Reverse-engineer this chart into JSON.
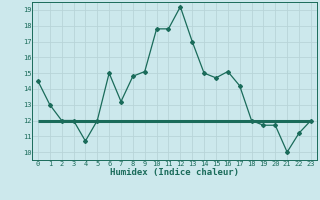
{
  "x": [
    0,
    1,
    2,
    3,
    4,
    5,
    6,
    7,
    8,
    9,
    10,
    11,
    12,
    13,
    14,
    15,
    16,
    17,
    18,
    19,
    20,
    21,
    22,
    23
  ],
  "y_curve": [
    14.5,
    13.0,
    12.0,
    12.0,
    10.7,
    12.0,
    15.0,
    13.2,
    14.8,
    15.1,
    17.8,
    17.8,
    19.2,
    17.0,
    15.0,
    14.7,
    15.1,
    14.2,
    12.0,
    11.7,
    11.7,
    10.0,
    11.2,
    12.0
  ],
  "y_flat": [
    12.0,
    12.0,
    12.0,
    12.0,
    12.0,
    12.0,
    12.0,
    12.0,
    12.0,
    12.0,
    12.0,
    12.0,
    12.0,
    12.0,
    12.0,
    12.0,
    12.0,
    12.0,
    12.0,
    12.0,
    12.0,
    12.0,
    12.0,
    12.0
  ],
  "line_color": "#1a6b5a",
  "bg_color": "#cce8ec",
  "grid_color": "#b8d4d8",
  "xlabel": "Humidex (Indice chaleur)",
  "ylim": [
    9.5,
    19.5
  ],
  "xlim": [
    -0.5,
    23.5
  ],
  "yticks": [
    10,
    11,
    12,
    13,
    14,
    15,
    16,
    17,
    18,
    19
  ],
  "xticks": [
    0,
    1,
    2,
    3,
    4,
    5,
    6,
    7,
    8,
    9,
    10,
    11,
    12,
    13,
    14,
    15,
    16,
    17,
    18,
    19,
    20,
    21,
    22,
    23
  ]
}
